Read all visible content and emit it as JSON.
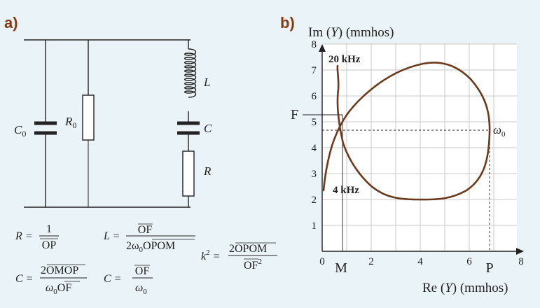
{
  "panel_a": {
    "label": "a)",
    "component_labels": {
      "c0": "C",
      "c0_sub": "0",
      "r0": "R",
      "r0_sub": "0",
      "l": "L",
      "c": "C",
      "r": "R"
    },
    "formulas": {
      "r_lhs": "R =",
      "r_num": "1",
      "r_den": "OP",
      "l_lhs": "L =",
      "l_num": "OF",
      "l_den_pre": "2ω",
      "l_den_sub": "0",
      "l_den_over": "OPOM",
      "k_lhs": "k",
      "k_sup": "2",
      "k_eq": "=",
      "k_num_pre": "2",
      "k_num_over": "OPOM",
      "k_den": "OF",
      "k_den_sup": "2",
      "c_lhs": "C =",
      "c_num_pre": "2",
      "c_num_over": "OMOP",
      "c_den_pre": "ω",
      "c_den_sub": "0",
      "c_den_over": "OF",
      "c2_lhs": "C =",
      "c2_num": "OF",
      "c2_den_pre": "ω",
      "c2_den_sub": "0"
    }
  },
  "panel_b": {
    "label": "b)",
    "y_axis_title_pre": "Im (",
    "y_axis_title_var": "Y",
    "y_axis_title_post": ") (mmhos)",
    "x_axis_title_pre": "Re (",
    "x_axis_title_var": "Y",
    "x_axis_title_post": ") (mmhos)",
    "y_ticks": [
      "1",
      "2",
      "3",
      "4",
      "5",
      "6",
      "7",
      "8"
    ],
    "x_ticks": [
      "0",
      "2",
      "4",
      "6",
      "8"
    ],
    "point_labels": {
      "f": "F",
      "m": "M",
      "p": "P",
      "omega": "ω",
      "omega_sub": "0"
    },
    "annotations": {
      "high_freq": "20 kHz",
      "low_freq": "4 kHz"
    }
  },
  "colors": {
    "background": "#eaf3f8",
    "panel_label": "#8a3a12",
    "locus": "#6b3a1c",
    "grid": "#c8c8c8",
    "line": "#222222"
  }
}
